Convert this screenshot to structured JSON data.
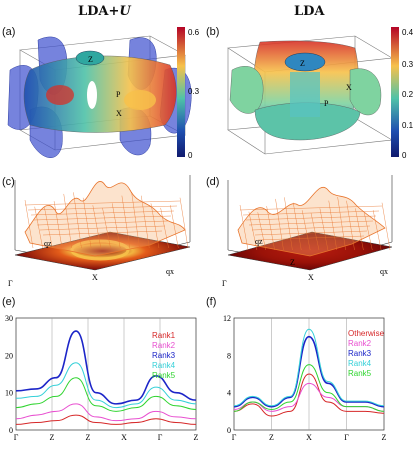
{
  "titles": {
    "left": "LDA+U",
    "left_base": "LDA+",
    "left_italic": "U",
    "right": "LDA"
  },
  "panel_labels": {
    "a": "(a)",
    "b": "(b)",
    "c": "(c)",
    "d": "(d)",
    "e": "(e)",
    "f": "(f)"
  },
  "colorbar_a": {
    "ticks": [
      "0.6",
      "0.3",
      "0"
    ],
    "colors": [
      "#b40426",
      "#f7c14a",
      "#4fc2a8",
      "#1f4fb0",
      "#101a6e"
    ]
  },
  "colorbar_b": {
    "ticks": [
      "0.4",
      "0.3",
      "0.2",
      "0.1",
      "0"
    ],
    "colors": [
      "#b40426",
      "#f7c14a",
      "#4fc2a8",
      "#1f4fb0",
      "#101a6e"
    ]
  },
  "fs_labels_a": {
    "Z": "Z",
    "P": "P",
    "X": "X"
  },
  "fs_labels_b": {
    "Z": "Z",
    "P": "P",
    "X": "X"
  },
  "surface_labels": {
    "c": {
      "qz": "qz",
      "qx": "qx",
      "gamma": "Γ",
      "x": "X"
    },
    "d": {
      "qz": "qz",
      "z": "Z",
      "qx": "qx",
      "gamma": "Γ",
      "x": "X"
    }
  },
  "chart_data": [
    {
      "type": "line",
      "panel": "(e)",
      "ylim": [
        0,
        30
      ],
      "yticks": [
        "0",
        "10",
        "20",
        "30"
      ],
      "x_ticks": [
        "Γ",
        "Z",
        "Z",
        "X",
        "Γ",
        "Z"
      ],
      "series": [
        {
          "name": "Rank1",
          "color": "#d62728",
          "values": [
            1.5,
            2.0,
            2.5,
            4.0,
            2.0,
            1.5,
            2.0,
            3.0,
            2.0,
            1.5
          ]
        },
        {
          "name": "Rank2",
          "color": "#e84fd0",
          "values": [
            3.0,
            4.0,
            5.0,
            7.0,
            3.5,
            2.5,
            3.0,
            5.0,
            3.5,
            3.0
          ]
        },
        {
          "name": "Rank3",
          "color": "#1c25c8",
          "values": [
            10.5,
            11.0,
            14.0,
            26.5,
            10.0,
            7.0,
            8.0,
            14.5,
            10.0,
            8.0
          ]
        },
        {
          "name": "Rank4",
          "color": "#35d0d8",
          "values": [
            8.5,
            9.0,
            12.0,
            18.0,
            8.0,
            6.0,
            7.0,
            11.5,
            8.0,
            7.0
          ]
        },
        {
          "name": "Rank5",
          "color": "#2fd42f",
          "values": [
            6.0,
            7.0,
            9.0,
            14.0,
            6.5,
            5.0,
            6.0,
            9.0,
            6.5,
            5.5
          ]
        }
      ]
    },
    {
      "type": "line",
      "panel": "(f)",
      "ylim": [
        0,
        12
      ],
      "yticks": [
        "0",
        "4",
        "8",
        "12"
      ],
      "x_ticks": [
        "Γ",
        "Z",
        "X",
        "Γ",
        "Z"
      ],
      "series": [
        {
          "name": "Otherwise",
          "color": "#d62728",
          "values": [
            2.0,
            2.8,
            1.5,
            2.0,
            6.0,
            3.0,
            2.0,
            2.0,
            1.8
          ]
        },
        {
          "name": "Rank2",
          "color": "#e84fd0",
          "values": [
            2.2,
            3.0,
            2.0,
            2.5,
            5.0,
            3.5,
            2.5,
            2.5,
            2.0
          ]
        },
        {
          "name": "Rank3",
          "color": "#1c25c8",
          "values": [
            2.5,
            3.5,
            2.5,
            3.5,
            10.0,
            5.0,
            3.0,
            3.0,
            2.5
          ]
        },
        {
          "name": "Rank4",
          "color": "#35d0d8",
          "values": [
            2.6,
            3.6,
            2.6,
            3.6,
            10.8,
            5.2,
            3.1,
            3.1,
            2.6
          ]
        },
        {
          "name": "Rank5",
          "color": "#2fd42f",
          "values": [
            2.0,
            3.0,
            2.2,
            3.0,
            7.0,
            4.0,
            2.5,
            2.5,
            2.0
          ]
        }
      ]
    }
  ]
}
